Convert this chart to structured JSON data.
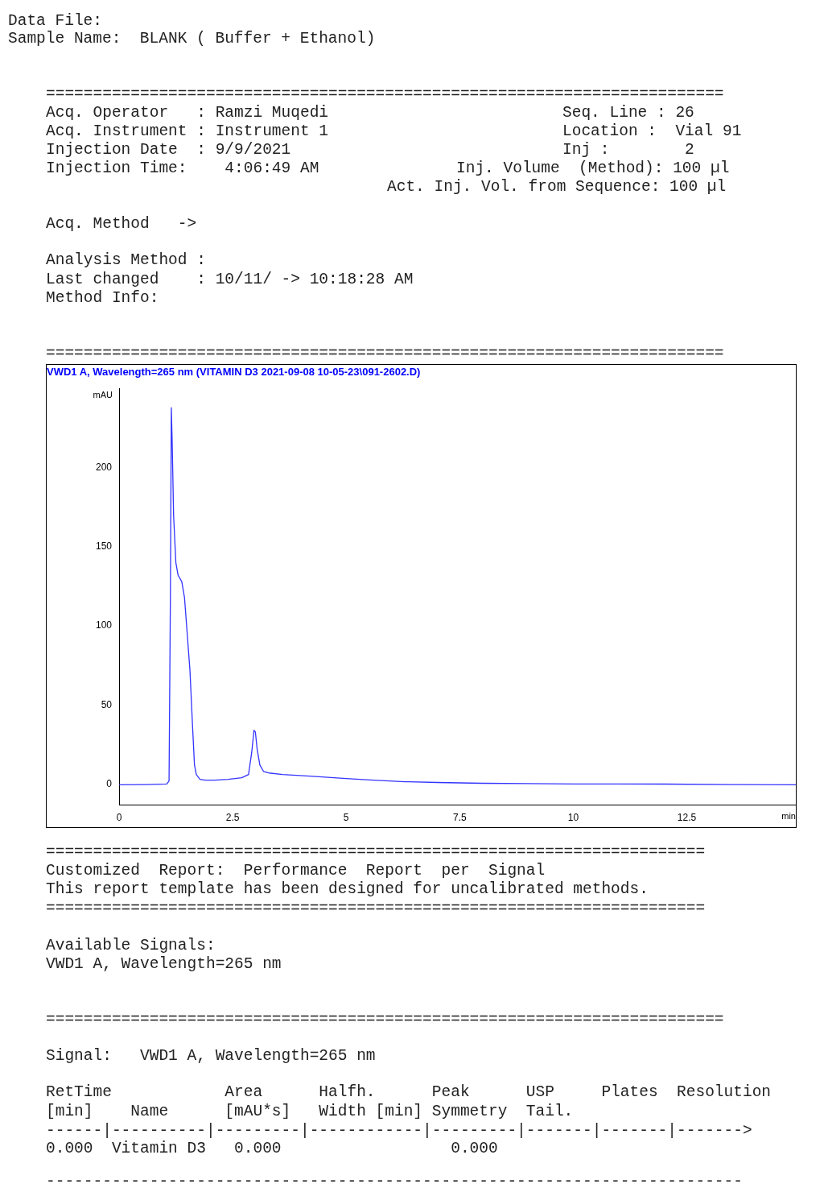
{
  "chart_data": {
    "type": "line",
    "title": "VWD1 A, Wavelength=265 nm (VITAMIN D3 2021-09-08 10-05-23\\091-2602.D)",
    "xlabel": "min",
    "ylabel": "mAU",
    "series": [
      {
        "color": "#3333ff",
        "x": [
          0,
          0.6,
          1.05,
          1.1,
          1.13,
          1.15,
          1.17,
          1.2,
          1.25,
          1.3,
          1.38,
          1.44,
          1.5,
          1.56,
          1.62,
          1.66,
          1.7,
          1.78,
          1.9,
          2.1,
          2.4,
          2.7,
          2.85,
          2.92,
          2.97,
          3.0,
          3.04,
          3.1,
          3.18,
          3.3,
          3.6,
          4.2,
          5.0,
          5.6,
          6.3,
          7.0,
          8.0,
          9.0,
          10.0,
          12.0,
          13.5,
          14.9
        ],
        "values": [
          -0.5,
          -0.3,
          0,
          2,
          120,
          238,
          215,
          170,
          140,
          132,
          128,
          118,
          95,
          72,
          35,
          12,
          6,
          3,
          2.5,
          2.5,
          3,
          4,
          6,
          20,
          34,
          33,
          22,
          12,
          8,
          7,
          6,
          5,
          3.5,
          2.5,
          1.5,
          1,
          0.5,
          0.3,
          0,
          0,
          -0.3,
          -0.5
        ]
      }
    ],
    "xlim": [
      0,
      14.9
    ],
    "xticks": [
      0,
      2.5,
      5,
      7.5,
      10,
      12.5
    ],
    "ylim": [
      -13,
      250
    ],
    "yticks": [
      0,
      50,
      100,
      150,
      200
    ],
    "grid": false,
    "legend": false,
    "marker": "none",
    "line_style": "solid",
    "annotations": [
      "Data File:",
      "Sample Name:  BLANK ( Buffer + Ethanol)",
      "========================================================================",
      "Acq. Operator   : Ramzi Muqedi",
      "Seq. Line : 26",
      "Acq. Instrument : Instrument 1",
      "Location :  Vial 91",
      "Injection Date  : 9/9/2021",
      "Inj :        2",
      "Injection Time:    4:06:49 AM",
      "Inj. Volume  (Method): 100 µl",
      "Act. Inj. Vol. from Sequence: 100 µl",
      "Acq. Method   ->",
      "Analysis Method :",
      "Last changed    : 10/11/ -> 10:18:28 AM",
      "Method Info:",
      "========================================================================",
      "======================================================================",
      "Customized  Report:  Performance  Report  per  Signal",
      "This report template has been designed for uncalibrated methods.",
      "======================================================================",
      "Available Signals:",
      "VWD1 A, Wavelength=265 nm",
      "========================================================================",
      "Signal:   VWD1 A, Wavelength=265 nm",
      "RetTime            Area      Halfh.      Peak      USP     Plates  Resolution",
      "[min]    Name      [mAU*s]   Width [min] Symmetry  Tail.",
      "------|----------|---------|------------|---------|-------|-------|------->",
      "0.000  Vitamin D3   0.000                  0.000",
      "--------------------------------------------------------------------------"
    ]
  }
}
